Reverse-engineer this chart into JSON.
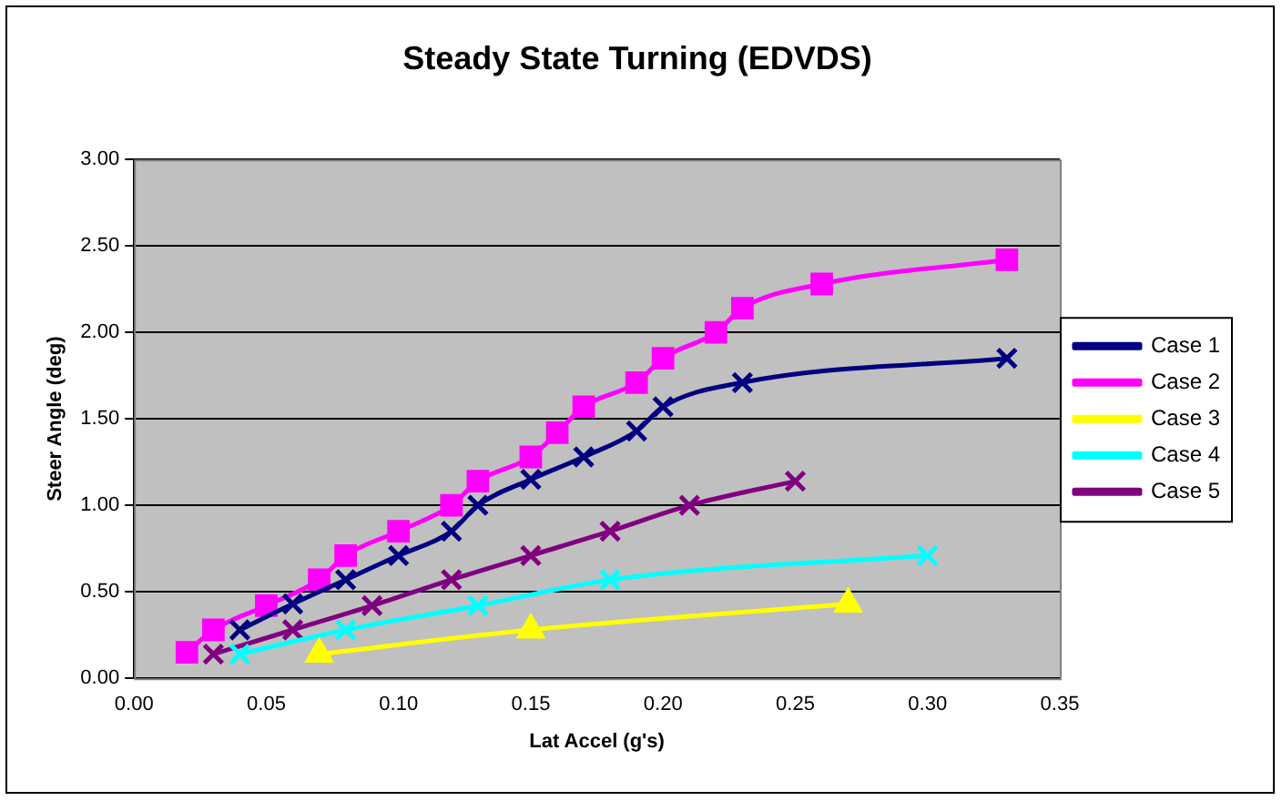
{
  "chart_data": {
    "type": "line",
    "title": "Steady State Turning (EDVDS)",
    "xlabel": "Lat Accel (g's)",
    "ylabel": "Steer Angle (deg)",
    "xlim": [
      0,
      0.35
    ],
    "xticks": [
      {
        "value": 0,
        "label": "0.00"
      },
      {
        "value": 0.05,
        "label": "0.05"
      },
      {
        "value": 0.1,
        "label": "0.10"
      },
      {
        "value": 0.15,
        "label": "0.15"
      },
      {
        "value": 0.2,
        "label": "0.20"
      },
      {
        "value": 0.25,
        "label": "0.25"
      },
      {
        "value": 0.3,
        "label": "0.30"
      },
      {
        "value": 0.35,
        "label": "0.35"
      }
    ],
    "ylim": [
      0,
      3
    ],
    "yticks": [
      {
        "value": 0,
        "label": "0.00"
      },
      {
        "value": 0.5,
        "label": "0.50"
      },
      {
        "value": 1,
        "label": "1.00"
      },
      {
        "value": 1.5,
        "label": "1.50"
      },
      {
        "value": 2,
        "label": "2.00"
      },
      {
        "value": 2.5,
        "label": "2.50"
      },
      {
        "value": 3,
        "label": "3.00"
      }
    ],
    "grid": "y",
    "legend": "right",
    "series": [
      {
        "name": "Case 1",
        "color": "#000080",
        "marker": "cross",
        "x": [
          0.04,
          0.06,
          0.08,
          0.1,
          0.12,
          0.13,
          0.15,
          0.17,
          0.19,
          0.2,
          0.23,
          0.33
        ],
        "values": [
          0.28,
          0.43,
          0.57,
          0.71,
          0.85,
          1.0,
          1.15,
          1.28,
          1.43,
          1.57,
          1.71,
          1.85
        ]
      },
      {
        "name": "Case 2",
        "color": "#ff00ff",
        "marker": "square",
        "x": [
          0.02,
          0.03,
          0.05,
          0.07,
          0.08,
          0.1,
          0.12,
          0.13,
          0.15,
          0.16,
          0.17,
          0.19,
          0.2,
          0.22,
          0.23,
          0.26,
          0.33
        ],
        "values": [
          0.15,
          0.28,
          0.42,
          0.57,
          0.71,
          0.85,
          1.0,
          1.14,
          1.28,
          1.42,
          1.57,
          1.71,
          1.85,
          2.0,
          2.14,
          2.28,
          2.42
        ]
      },
      {
        "name": "Case 3",
        "color": "#ffff00",
        "marker": "triangle",
        "x": [
          0.07,
          0.15,
          0.27
        ],
        "values": [
          0.14,
          0.28,
          0.43
        ]
      },
      {
        "name": "Case 4",
        "color": "#00ffff",
        "marker": "cross",
        "x": [
          0.04,
          0.08,
          0.13,
          0.18,
          0.3
        ],
        "values": [
          0.14,
          0.28,
          0.42,
          0.57,
          0.71
        ]
      },
      {
        "name": "Case 5",
        "color": "#800080",
        "marker": "cross",
        "x": [
          0.03,
          0.06,
          0.09,
          0.12,
          0.15,
          0.18,
          0.21,
          0.25
        ],
        "values": [
          0.14,
          0.28,
          0.42,
          0.57,
          0.71,
          0.85,
          1.0,
          1.14
        ]
      }
    ]
  }
}
